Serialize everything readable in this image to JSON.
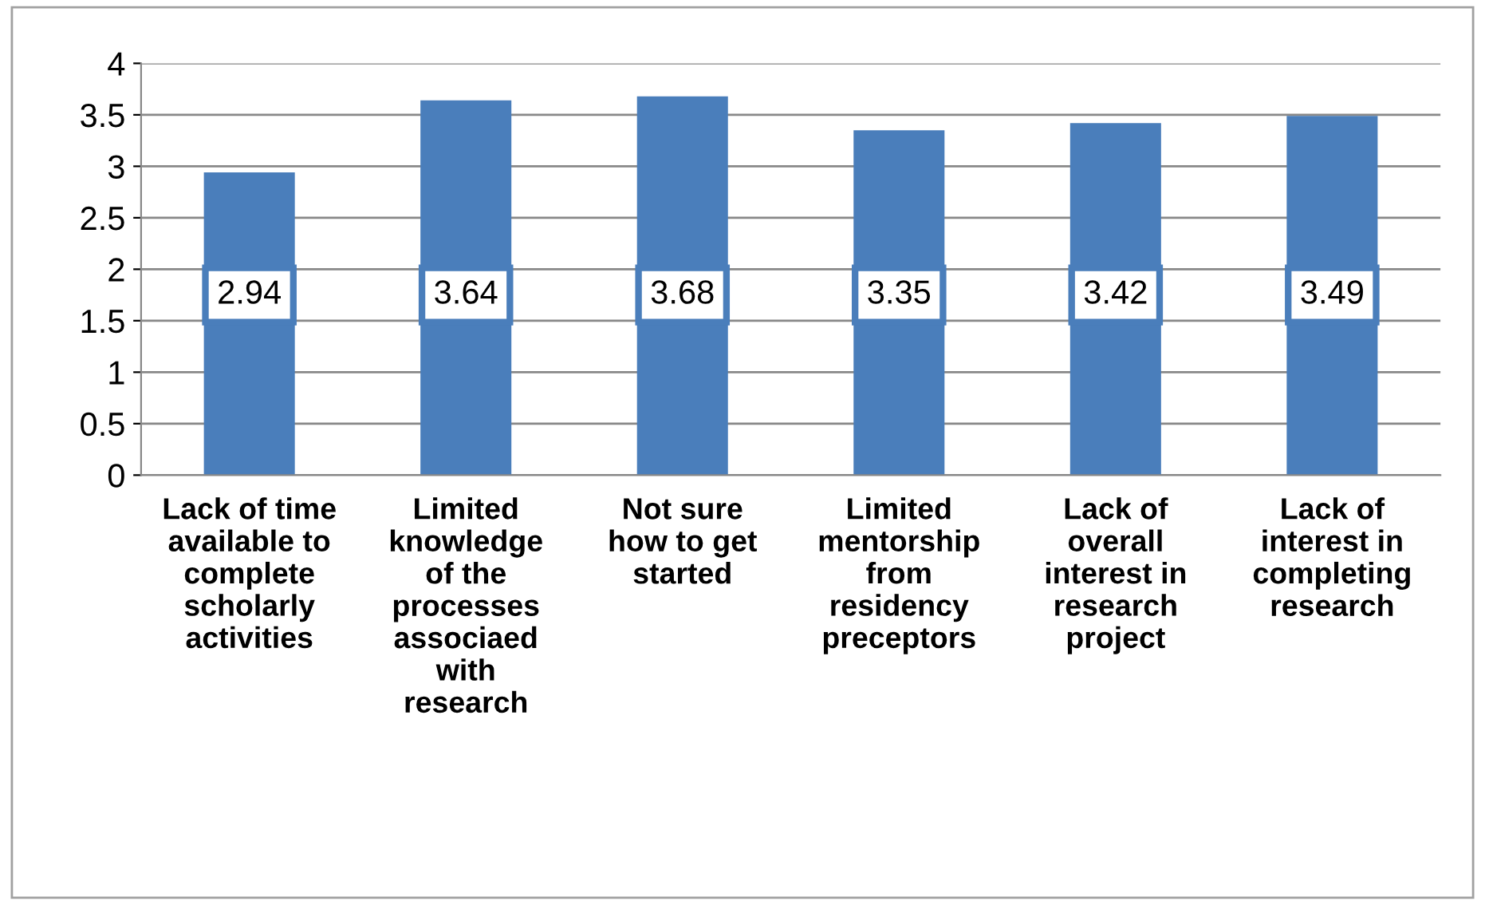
{
  "chart_data": {
    "type": "bar",
    "categories": [
      "Lack of time\navailable to\ncomplete\nscholarly\nactivities",
      "Limited\nknowledge\nof the\nprocesses\nassociaed\nwith\nresearch",
      "Not sure\nhow to get\nstarted",
      "Limited\nmentorship\nfrom\nresidency\npreceptors",
      "Lack of\noverall\ninterest in\nresearch\nproject",
      "Lack of\ninterest in\ncompleting\nresearch"
    ],
    "values": [
      2.94,
      3.64,
      3.68,
      3.35,
      3.42,
      3.49
    ],
    "color": "#4a7ebb",
    "ylim": [
      0,
      4
    ],
    "yticks": [
      0,
      0.5,
      1,
      1.5,
      2,
      2.5,
      3,
      3.5,
      4
    ],
    "grid": "y",
    "data_labels": true,
    "legend": false
  }
}
